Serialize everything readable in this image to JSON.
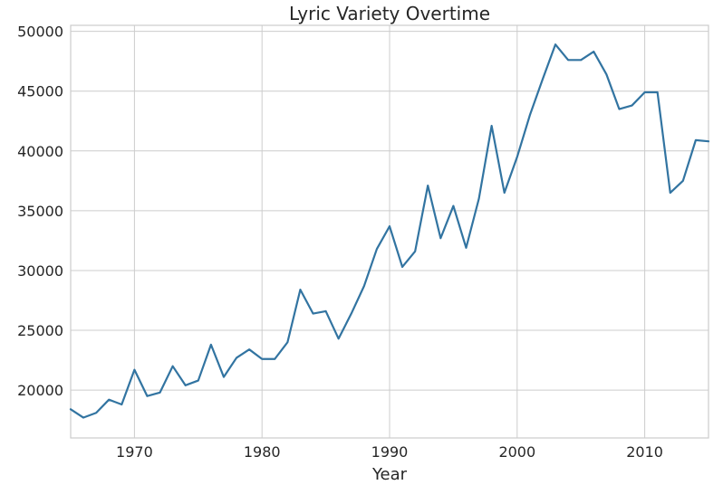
{
  "chart_data": {
    "type": "line",
    "title": "Lyric Variety Overtime",
    "xlabel": "Year",
    "ylabel": "",
    "xlim": [
      1965,
      2015
    ],
    "ylim": [
      16000,
      50500
    ],
    "xticks": [
      1970,
      1980,
      1990,
      2000,
      2010
    ],
    "yticks": [
      20000,
      25000,
      30000,
      35000,
      40000,
      45000,
      50000
    ],
    "grid": true,
    "line_color": "#3274a1",
    "series": [
      {
        "x": [
          1965,
          1966,
          1967,
          1968,
          1969,
          1970,
          1971,
          1972,
          1973,
          1974,
          1975,
          1976,
          1977,
          1978,
          1979,
          1980,
          1981,
          1982,
          1983,
          1984,
          1985,
          1986,
          1987,
          1988,
          1989,
          1990,
          1991,
          1992,
          1993,
          1994,
          1995,
          1996,
          1997,
          1998,
          1999,
          2000,
          2001,
          2002,
          2003,
          2004,
          2005,
          2006,
          2007,
          2008,
          2009,
          2010,
          2011,
          2012,
          2013,
          2014,
          2015
        ],
        "y": [
          18400,
          17700,
          18100,
          19200,
          18800,
          21700,
          19500,
          19800,
          22000,
          20400,
          20800,
          23800,
          21100,
          22700,
          23400,
          22600,
          22600,
          24000,
          28400,
          26400,
          26600,
          24300,
          26400,
          28700,
          31800,
          33700,
          30300,
          31600,
          37100,
          32700,
          35400,
          31900,
          36000,
          42100,
          36500,
          39500,
          43000,
          46000,
          48900,
          47600,
          47600,
          48300,
          46400,
          43500,
          43800,
          44900,
          44900,
          36500,
          37500,
          40900,
          40800
        ]
      }
    ]
  }
}
